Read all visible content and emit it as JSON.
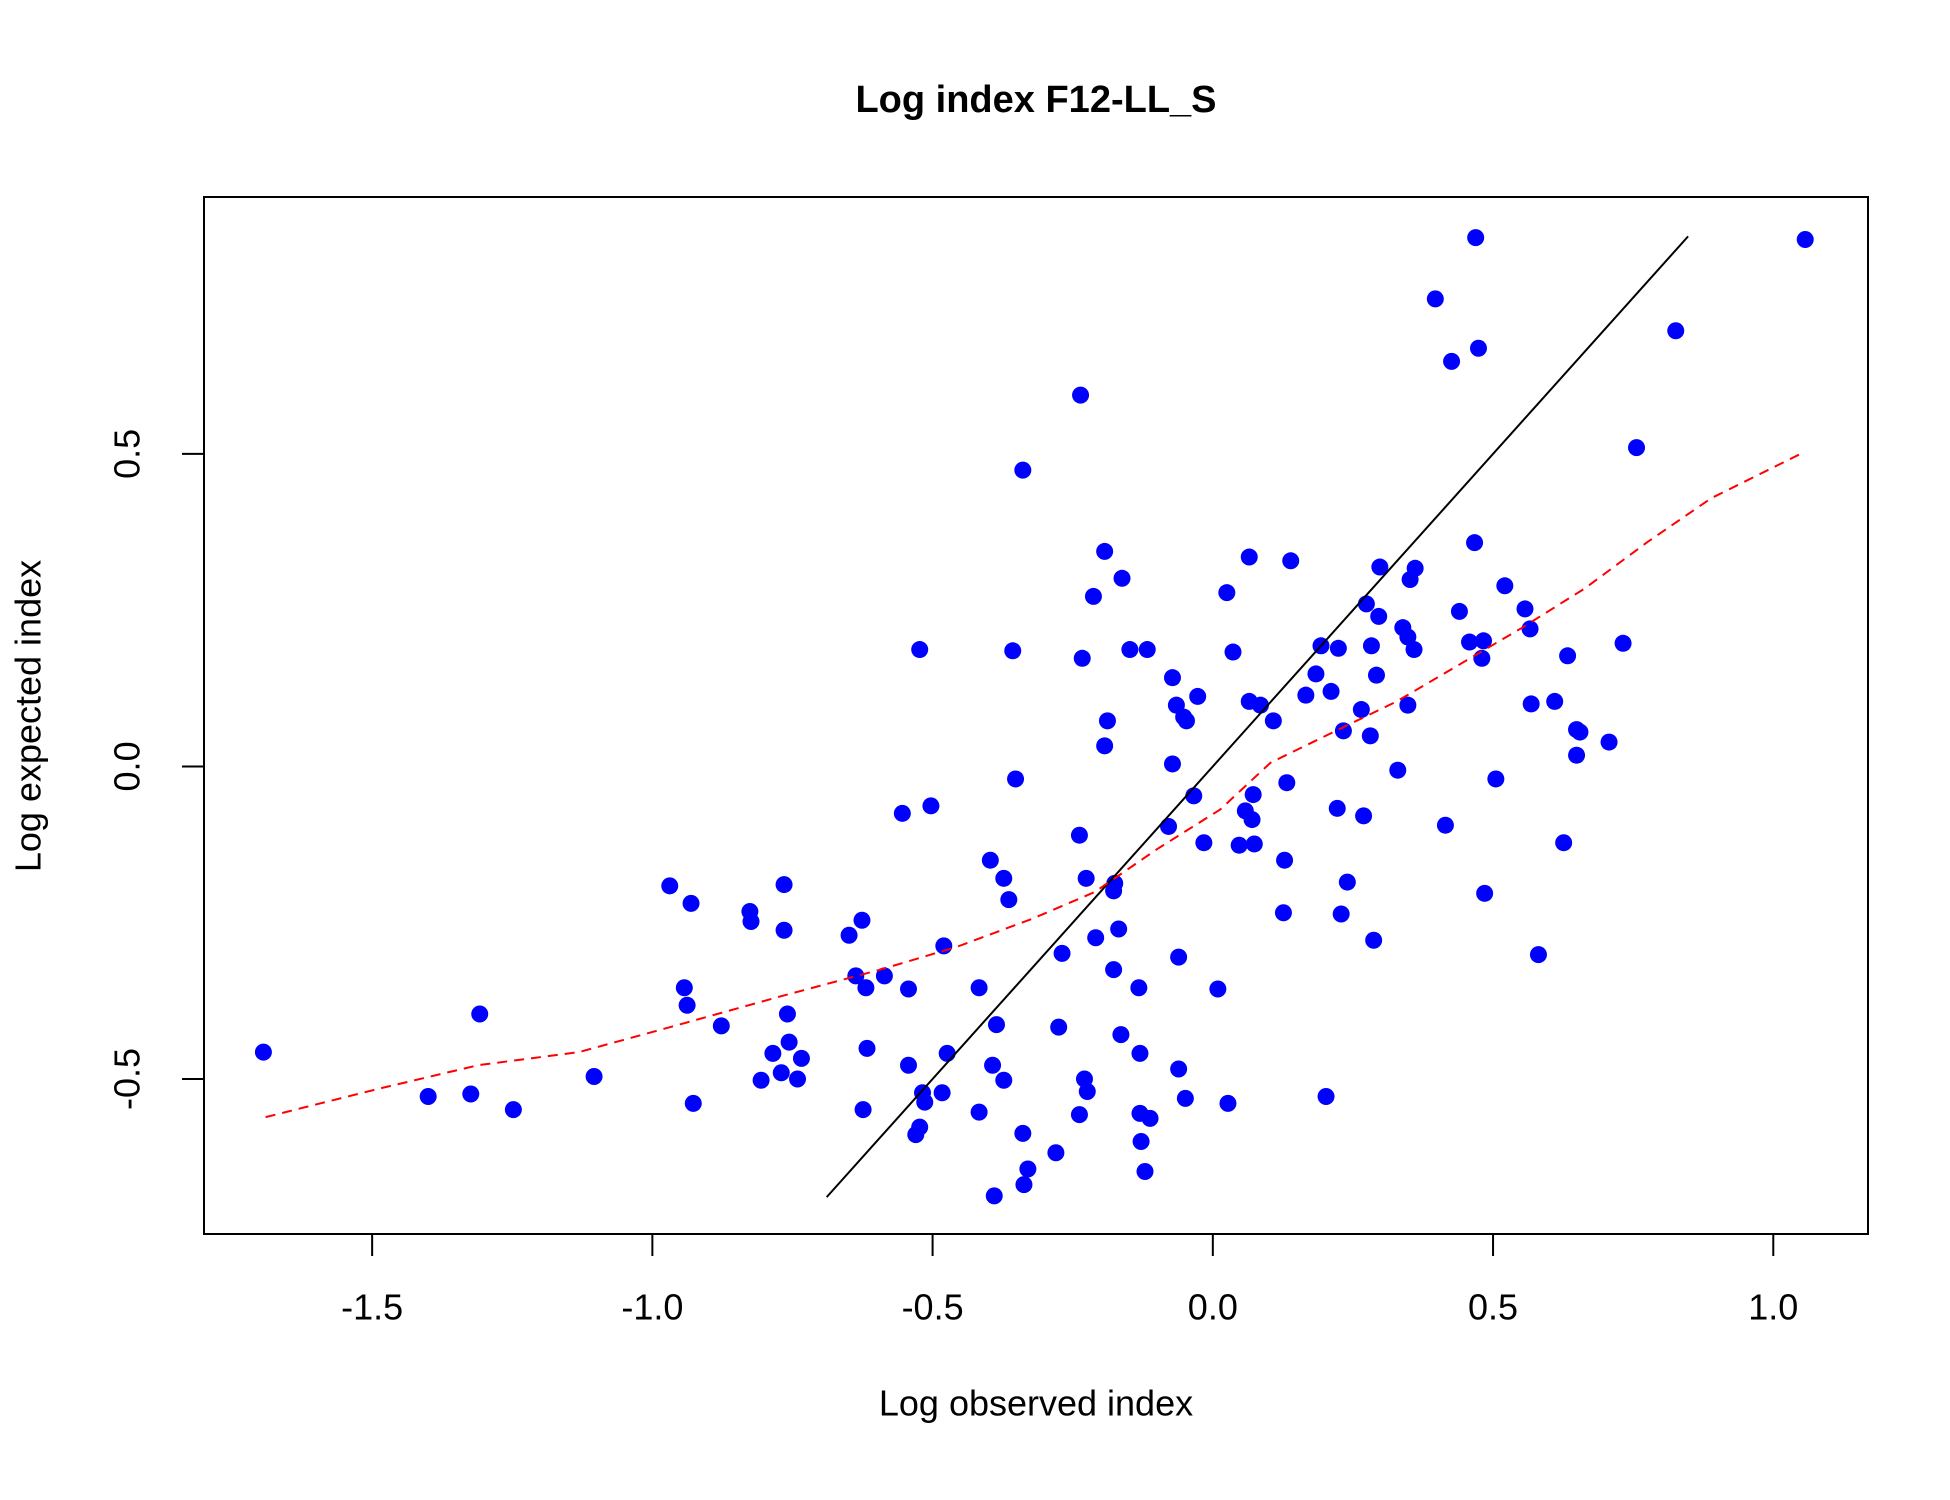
{
  "chart_data": {
    "type": "scatter",
    "title": "Log index F12-LL_S",
    "xlabel": "Log observed index",
    "ylabel": "Log expected index",
    "xlim": [
      -1.8,
      1.169
    ],
    "ylim": [
      -0.748,
      0.911
    ],
    "xticks": [
      -1.5,
      {
        "value": -1,
        "label": "-1.0"
      },
      -0.5,
      {
        "value": 0,
        "label": "0.0"
      },
      0.5,
      {
        "value": 1,
        "label": "1.0"
      }
    ],
    "yticks": [
      -0.5,
      {
        "value": 0,
        "label": "0.0"
      },
      0.5
    ],
    "series": [
      {
        "color": "#0000ff",
        "x": [
          -1.694,
          -1.4,
          -1.324,
          -1.308,
          -1.248,
          -1.104,
          -0.969,
          -0.931,
          -0.943,
          -0.938,
          -0.927,
          -0.877,
          -0.826,
          -0.824,
          -0.765,
          -0.765,
          -0.759,
          -0.756,
          -0.785,
          -0.806,
          -0.77,
          -0.741,
          -0.734,
          -0.649,
          -0.626,
          -0.637,
          -0.619,
          -0.586,
          -0.617,
          -0.624,
          -0.554,
          -0.503,
          -0.523,
          -0.543,
          -0.48,
          -0.543,
          -0.474,
          -0.518,
          -0.514,
          -0.483,
          -0.523,
          -0.53,
          -0.417,
          -0.397,
          -0.373,
          -0.364,
          -0.357,
          -0.352,
          -0.339,
          -0.386,
          -0.393,
          -0.373,
          -0.417,
          -0.339,
          -0.33,
          -0.337,
          -0.39,
          -0.28,
          -0.275,
          -0.269,
          -0.236,
          -0.233,
          -0.238,
          -0.226,
          -0.213,
          -0.193,
          -0.188,
          -0.193,
          -0.175,
          -0.177,
          -0.162,
          -0.148,
          -0.117,
          -0.168,
          -0.209,
          -0.177,
          -0.164,
          -0.229,
          -0.224,
          -0.238,
          -0.132,
          -0.13,
          -0.13,
          -0.112,
          -0.128,
          -0.121,
          -0.072,
          -0.065,
          -0.047,
          -0.052,
          -0.027,
          -0.072,
          -0.034,
          -0.079,
          -0.016,
          -0.061,
          -0.061,
          -0.049,
          0.009,
          0.027,
          0.025,
          0.036,
          0.065,
          0.065,
          0.085,
          0.108,
          0.058,
          0.072,
          0.07,
          0.047,
          0.074,
          0.128,
          0.132,
          0.139,
          0.126,
          0.166,
          0.184,
          0.193,
          0.211,
          0.224,
          0.233,
          0.222,
          0.24,
          0.229,
          0.202,
          0.274,
          0.265,
          0.283,
          0.296,
          0.292,
          0.298,
          0.281,
          0.269,
          0.287,
          0.33,
          0.339,
          0.348,
          0.359,
          0.352,
          0.361,
          0.348,
          0.415,
          0.397,
          0.426,
          0.469,
          0.474,
          0.467,
          0.44,
          0.458,
          0.483,
          0.48,
          0.505,
          0.485,
          0.521,
          0.557,
          0.566,
          0.568,
          0.61,
          0.581,
          0.626,
          0.633,
          0.649,
          0.655,
          0.649,
          0.707,
          0.732,
          0.756,
          0.826,
          1.057
        ],
        "y": [
          -0.457,
          -0.528,
          -0.524,
          -0.396,
          -0.549,
          -0.496,
          -0.191,
          -0.219,
          -0.354,
          -0.382,
          -0.539,
          -0.415,
          -0.232,
          -0.248,
          -0.189,
          -0.262,
          -0.396,
          -0.441,
          -0.459,
          -0.502,
          -0.49,
          -0.5,
          -0.467,
          -0.27,
          -0.246,
          -0.335,
          -0.354,
          -0.335,
          -0.451,
          -0.549,
          -0.075,
          -0.063,
          0.187,
          -0.356,
          -0.287,
          -0.478,
          -0.459,
          -0.522,
          -0.537,
          -0.522,
          -0.577,
          -0.589,
          -0.354,
          -0.15,
          -0.179,
          -0.213,
          0.185,
          -0.02,
          0.474,
          -0.413,
          -0.478,
          -0.502,
          -0.553,
          -0.587,
          -0.644,
          -0.669,
          -0.687,
          -0.618,
          -0.417,
          -0.299,
          0.594,
          0.173,
          -0.11,
          -0.179,
          0.272,
          0.344,
          0.073,
          0.033,
          -0.187,
          -0.199,
          0.301,
          0.187,
          0.187,
          -0.26,
          -0.274,
          -0.325,
          -0.429,
          -0.5,
          -0.52,
          -0.557,
          -0.354,
          -0.459,
          -0.555,
          -0.563,
          -0.6,
          -0.648,
          0.142,
          0.098,
          0.073,
          0.079,
          0.112,
          0.004,
          -0.047,
          -0.096,
          -0.122,
          -0.305,
          -0.484,
          -0.531,
          -0.356,
          -0.539,
          0.278,
          0.183,
          0.335,
          0.104,
          0.098,
          0.073,
          -0.071,
          -0.045,
          -0.085,
          -0.126,
          -0.124,
          -0.15,
          -0.026,
          0.329,
          -0.234,
          0.114,
          0.148,
          0.193,
          0.12,
          0.189,
          0.057,
          -0.067,
          -0.185,
          -0.236,
          -0.528,
          0.26,
          0.091,
          0.193,
          0.24,
          0.146,
          0.319,
          0.049,
          -0.079,
          -0.278,
          -0.006,
          0.222,
          0.207,
          0.187,
          0.299,
          0.317,
          0.098,
          -0.094,
          0.748,
          0.648,
          0.846,
          0.669,
          0.358,
          0.248,
          0.199,
          0.201,
          0.173,
          -0.02,
          -0.203,
          0.289,
          0.252,
          0.22,
          0.1,
          0.104,
          -0.301,
          -0.122,
          0.177,
          0.059,
          0.055,
          0.018,
          0.039,
          0.197,
          0.51,
          0.697,
          0.843
        ]
      }
    ],
    "identity_line": {
      "color": "#000000",
      "x": [
        -0.689,
        0.848
      ],
      "y": [
        -0.689,
        0.848
      ]
    },
    "smooth_line": {
      "color": "#ff0000",
      "dashed": true,
      "x": [
        -1.69,
        -1.49,
        -1.311,
        -1.131,
        -0.952,
        -0.772,
        -0.593,
        -0.458,
        -0.323,
        -0.211,
        -0.099,
        0.013,
        0.103,
        0.215,
        0.328,
        0.44,
        0.552,
        0.664,
        0.777,
        0.889,
        1.053
      ],
      "y": [
        -0.561,
        -0.516,
        -0.478,
        -0.457,
        -0.413,
        -0.368,
        -0.325,
        -0.289,
        -0.244,
        -0.201,
        -0.132,
        -0.069,
        0.006,
        0.055,
        0.104,
        0.163,
        0.222,
        0.285,
        0.36,
        0.429,
        0.502
      ]
    }
  }
}
